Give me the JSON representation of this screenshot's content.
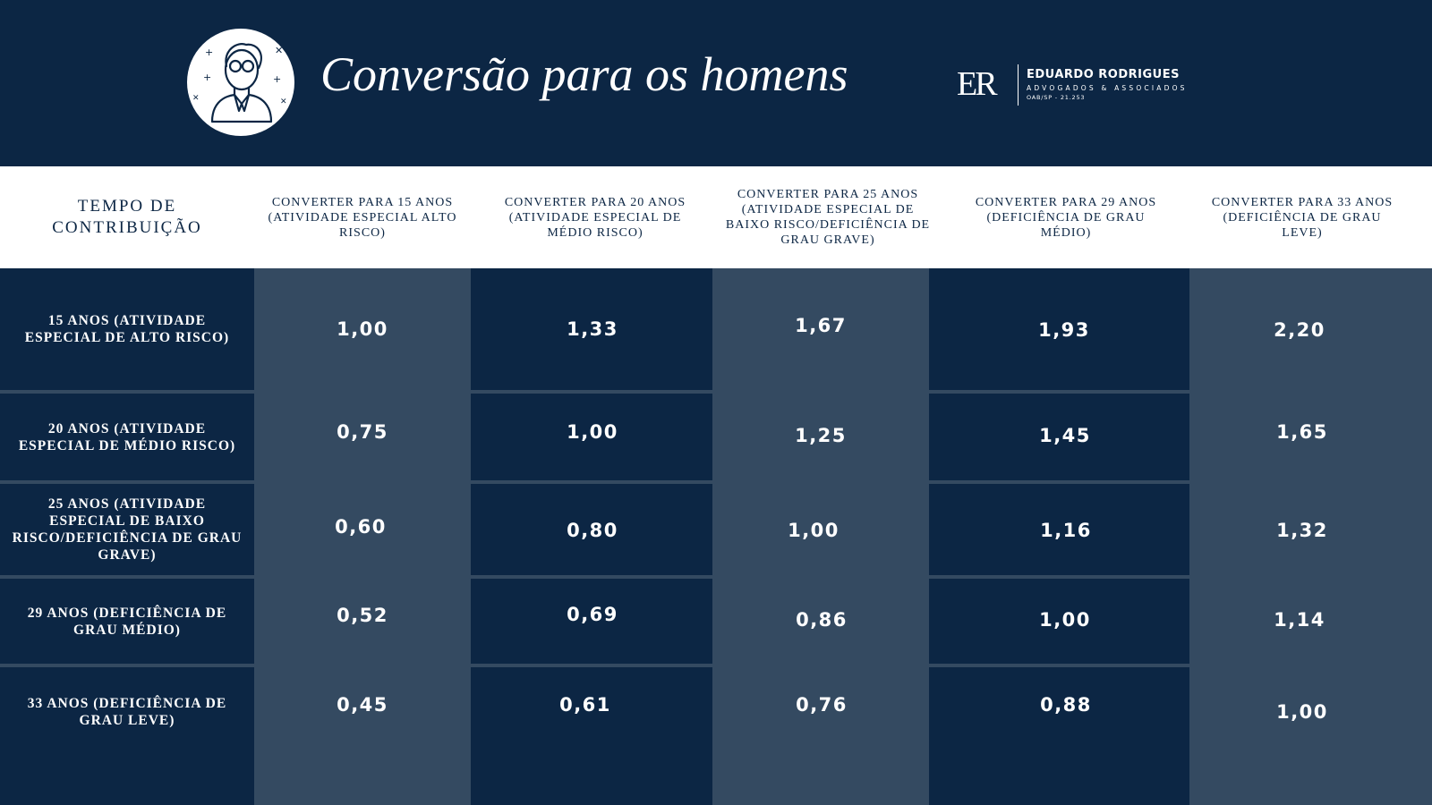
{
  "header": {
    "title": "Conversão para os homens",
    "avatar_icon": "elderly-man-icon",
    "logo": {
      "mark": "ER",
      "name": "EDUARDO RODRIGUES",
      "subtitle": "ADVOGADOS & ASSOCIADOS",
      "oab": "OAB/SP - 21.253"
    }
  },
  "table": {
    "headers": [
      "TEMPO DE CONTRIBUIÇÃO",
      "CONVERTER PARA 15 ANOS (ATIVIDADE ESPECIAL ALTO RISCO)",
      "CONVERTER PARA 20 ANOS (ATIVIDADE ESPECIAL DE MÉDIO RISCO)",
      "CONVERTER PARA 25 ANOS (ATIVIDADE ESPECIAL DE BAIXO RISCO/DEFICIÊNCIA DE GRAU GRAVE)",
      "CONVERTER PARA 29 ANOS (DEFICIÊNCIA DE GRAU MÉDIO)",
      "CONVERTER PARA 33 ANOS (DEFICIÊNCIA DE GRAU LEVE)"
    ],
    "rows": [
      {
        "label": "15 ANOS (ATIVIDADE ESPECIAL DE ALTO RISCO)",
        "values": [
          "1,00",
          "1,33",
          "1,67",
          "1,93",
          "2,20"
        ]
      },
      {
        "label": "20 ANOS (ATIVIDADE ESPECIAL DE MÉDIO RISCO)",
        "values": [
          "0,75",
          "1,00",
          "1,25",
          "1,45",
          "1,65"
        ]
      },
      {
        "label": "25 ANOS (ATIVIDADE ESPECIAL DE BAIXO RISCO/DEFICIÊNCIA DE GRAU GRAVE)",
        "values": [
          "0,60",
          "0,80",
          "1,00",
          "1,16",
          "1,32"
        ]
      },
      {
        "label": "29 ANOS (DEFICIÊNCIA DE GRAU MÉDIO)",
        "values": [
          "0,52",
          "0,69",
          "0,86",
          "1,00",
          "1,14"
        ]
      },
      {
        "label": "33 ANOS (DEFICIÊNCIA DE GRAU LEVE)",
        "values": [
          "0,45",
          "0,61",
          "0,76",
          "0,88",
          "1,00"
        ]
      }
    ]
  },
  "colors": {
    "navy": "#0c2644",
    "slate": "#344a61",
    "white": "#ffffff"
  }
}
